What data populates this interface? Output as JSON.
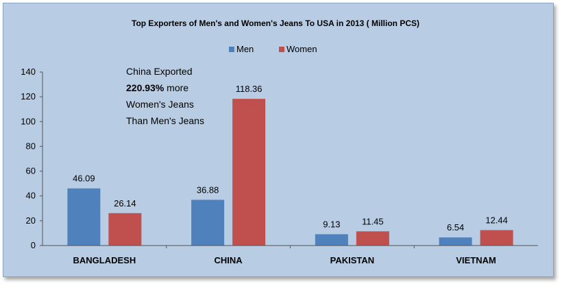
{
  "chart_data": {
    "type": "bar",
    "title": "Top Exporters of Men's and Women's Jeans To USA in 2013 ( Million PCS)",
    "categories": [
      "BANGLADESH",
      "CHINA",
      "PAKISTAN",
      "VIETNAM"
    ],
    "series": [
      {
        "name": "Men",
        "color": "#4f81bd",
        "values": [
          46.09,
          36.88,
          9.13,
          6.54
        ],
        "labels": [
          "46.09",
          "36.88",
          "9.13",
          "6.54"
        ]
      },
      {
        "name": "Women",
        "color": "#c0504d",
        "values": [
          26.14,
          118.36,
          11.45,
          12.44
        ],
        "labels": [
          "26.14",
          "118.36",
          "11.45",
          "12.44"
        ]
      }
    ],
    "ylim": [
      0,
      140
    ],
    "yticks": [
      0,
      20,
      40,
      60,
      80,
      100,
      120,
      140
    ],
    "grid": false,
    "legend_position": "top-center",
    "annotation": {
      "line1": "China Exported",
      "line2_bold": "220.93%",
      "line2_rest": " more",
      "line3": "Women's Jeans",
      "line4": "Than Men's Jeans"
    }
  }
}
